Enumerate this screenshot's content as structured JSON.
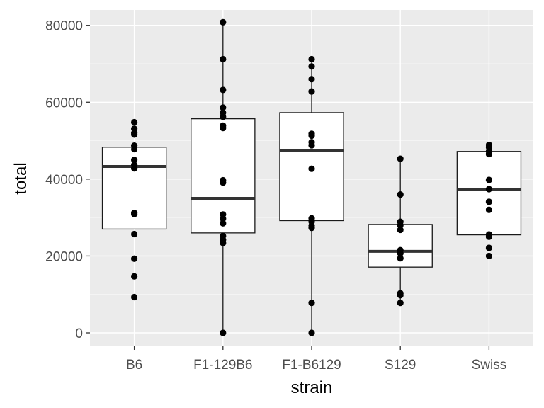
{
  "chart_data": {
    "type": "boxplot",
    "title": "",
    "xlabel": "strain",
    "ylabel": "total",
    "ylim": [
      -3500,
      84000
    ],
    "y_ticks": [
      0,
      20000,
      40000,
      60000,
      80000
    ],
    "y_tick_labels": [
      "0",
      "20000",
      "40000",
      "60000",
      "80000"
    ],
    "grid": true,
    "categories": [
      "B6",
      "F1-129B6",
      "F1-B6129",
      "S129",
      "Swiss"
    ],
    "boxes": [
      {
        "category": "B6",
        "q1": 27000,
        "median": 43300,
        "q3": 48300,
        "whisker_low": null,
        "whisker_high": null
      },
      {
        "category": "F1-129B6",
        "q1": 26000,
        "median": 35000,
        "q3": 55700,
        "whisker_low": 0,
        "whisker_high": 80800
      },
      {
        "category": "F1-B6129",
        "q1": 29200,
        "median": 47500,
        "q3": 57300,
        "whisker_low": 0,
        "whisker_high": 71200
      },
      {
        "category": "S129",
        "q1": 17100,
        "median": 21200,
        "q3": 28200,
        "whisker_low": 7800,
        "whisker_high": 45300
      },
      {
        "category": "Swiss",
        "q1": 25500,
        "median": 37300,
        "q3": 47200,
        "whisker_low": null,
        "whisker_high": null
      }
    ],
    "points": [
      {
        "category": "B6",
        "values": [
          54800,
          53100,
          52000,
          51600,
          48700,
          47800,
          45000,
          43700,
          42800,
          31200,
          30900,
          25700,
          19300,
          14700,
          9300
        ]
      },
      {
        "category": "F1-129B6",
        "values": [
          80800,
          71200,
          63200,
          58600,
          57300,
          56200,
          53900,
          53300,
          39700,
          39100,
          30800,
          29700,
          28500,
          25200,
          24200,
          23400,
          0
        ]
      },
      {
        "category": "F1-B6129",
        "values": [
          71200,
          69300,
          66000,
          62800,
          51800,
          51300,
          49600,
          48800,
          42700,
          29800,
          28900,
          27900,
          27300,
          7800,
          0
        ]
      },
      {
        "category": "S129",
        "values": [
          45300,
          36000,
          28900,
          28000,
          26800,
          21500,
          20700,
          19400,
          10300,
          9800,
          7800
        ]
      },
      {
        "category": "Swiss",
        "values": [
          48900,
          48300,
          47200,
          46500,
          39800,
          37400,
          34100,
          32000,
          25600,
          25000,
          22100,
          20000
        ]
      }
    ],
    "colors": {
      "panel_bg": "#ebebeb",
      "grid_major": "#ffffff",
      "box_fill": "#ffffff",
      "box_stroke": "#1a1a1a",
      "median": "#333333",
      "point": "#000000",
      "tick_text": "#4d4d4d",
      "axis_title": "#000000"
    }
  }
}
